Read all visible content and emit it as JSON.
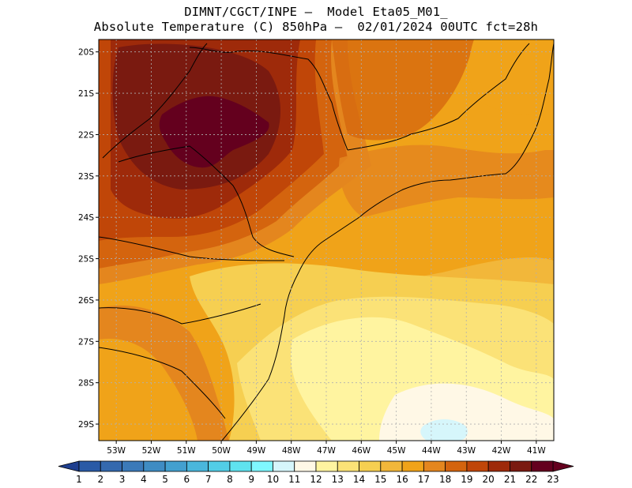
{
  "title": {
    "line1": "DIMNT/CGCT/INPE –  Model Eta05_M01_",
    "line2": "Absolute Temperature (C) 850hPa –  02/01/2024 00UTC fct=28h"
  },
  "map": {
    "lon_range": [
      -53.5,
      -40.5
    ],
    "lat_range": [
      -29.4,
      -19.7
    ],
    "lat_labels": [
      "20S",
      "21S",
      "22S",
      "23S",
      "24S",
      "25S",
      "26S",
      "27S",
      "28S",
      "29S"
    ],
    "lat_values": [
      -20,
      -21,
      -22,
      -23,
      -24,
      -25,
      -26,
      -27,
      -28,
      -29
    ],
    "lon_labels": [
      "53W",
      "52W",
      "51W",
      "50W",
      "49W",
      "48W",
      "47W",
      "46W",
      "45W",
      "44W",
      "43W",
      "42W",
      "41W"
    ],
    "lon_values": [
      -53,
      -52,
      -51,
      -50,
      -49,
      -48,
      -47,
      -46,
      -45,
      -44,
      -43,
      -42,
      -41
    ]
  },
  "colorbar": {
    "labels": [
      "1",
      "2",
      "3",
      "4",
      "5",
      "6",
      "7",
      "8",
      "9",
      "10",
      "11",
      "12",
      "13",
      "14",
      "15",
      "16",
      "17",
      "18",
      "19",
      "20",
      "21",
      "22",
      "23"
    ],
    "colors": [
      "#1f3f8f",
      "#2a5aa6",
      "#3469ae",
      "#3b7ab9",
      "#3f8cc3",
      "#43a0cf",
      "#4ab7dc",
      "#52cde6",
      "#5fe3ef",
      "#7ff8ff",
      "#d6f6fb",
      "#fff8e6",
      "#fff4a0",
      "#fbe277",
      "#f6cf51",
      "#f2b73a",
      "#f0a319",
      "#e4861e",
      "#d4640e",
      "#c04608",
      "#9e2a0a",
      "#7a1a10",
      "#64001e"
    ],
    "low_color": "#1f3f8f",
    "high_color": "#64001e"
  }
}
